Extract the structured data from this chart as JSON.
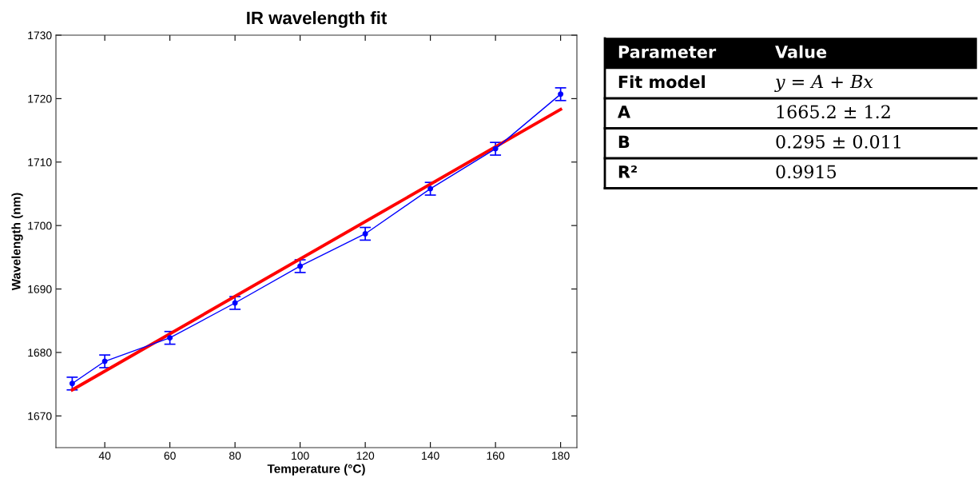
{
  "chart_data": {
    "type": "line",
    "title": "IR wavelength fit",
    "xlabel": "Temperature (°C)",
    "ylabel": "Wavelength (nm)",
    "xlim": [
      25,
      185
    ],
    "xticks": [
      40,
      60,
      80,
      100,
      120,
      140,
      160,
      180
    ],
    "ylim": [
      1665,
      1730
    ],
    "yticks": [
      1670,
      1680,
      1690,
      1700,
      1710,
      1720,
      1730
    ],
    "grid": false,
    "legend": false,
    "line_style": "solid",
    "series": [
      {
        "color": "#0000ff",
        "marker": "circle",
        "x": [
          30,
          40,
          60,
          80,
          100,
          120,
          140,
          160,
          180
        ],
        "values": [
          1675.1,
          1678.6,
          1682.3,
          1687.8,
          1693.6,
          1698.7,
          1705.8,
          1712.1,
          1720.7
        ],
        "errors": [
          1.0,
          1.0,
          1.0,
          1.0,
          1.0,
          1.0,
          1.0,
          1.0,
          1.0
        ]
      },
      {
        "color": "#ff0000",
        "marker": "none",
        "x": [
          30,
          180
        ],
        "values": [
          1674.1,
          1718.3
        ]
      }
    ],
    "annotations": [
      "Parameter",
      "Value",
      "Fit model",
      "y = A + Bx",
      "A",
      "1665.2 ± 1.2",
      "B",
      "0.295 ± 0.011",
      "R²",
      "0.9915"
    ]
  }
}
